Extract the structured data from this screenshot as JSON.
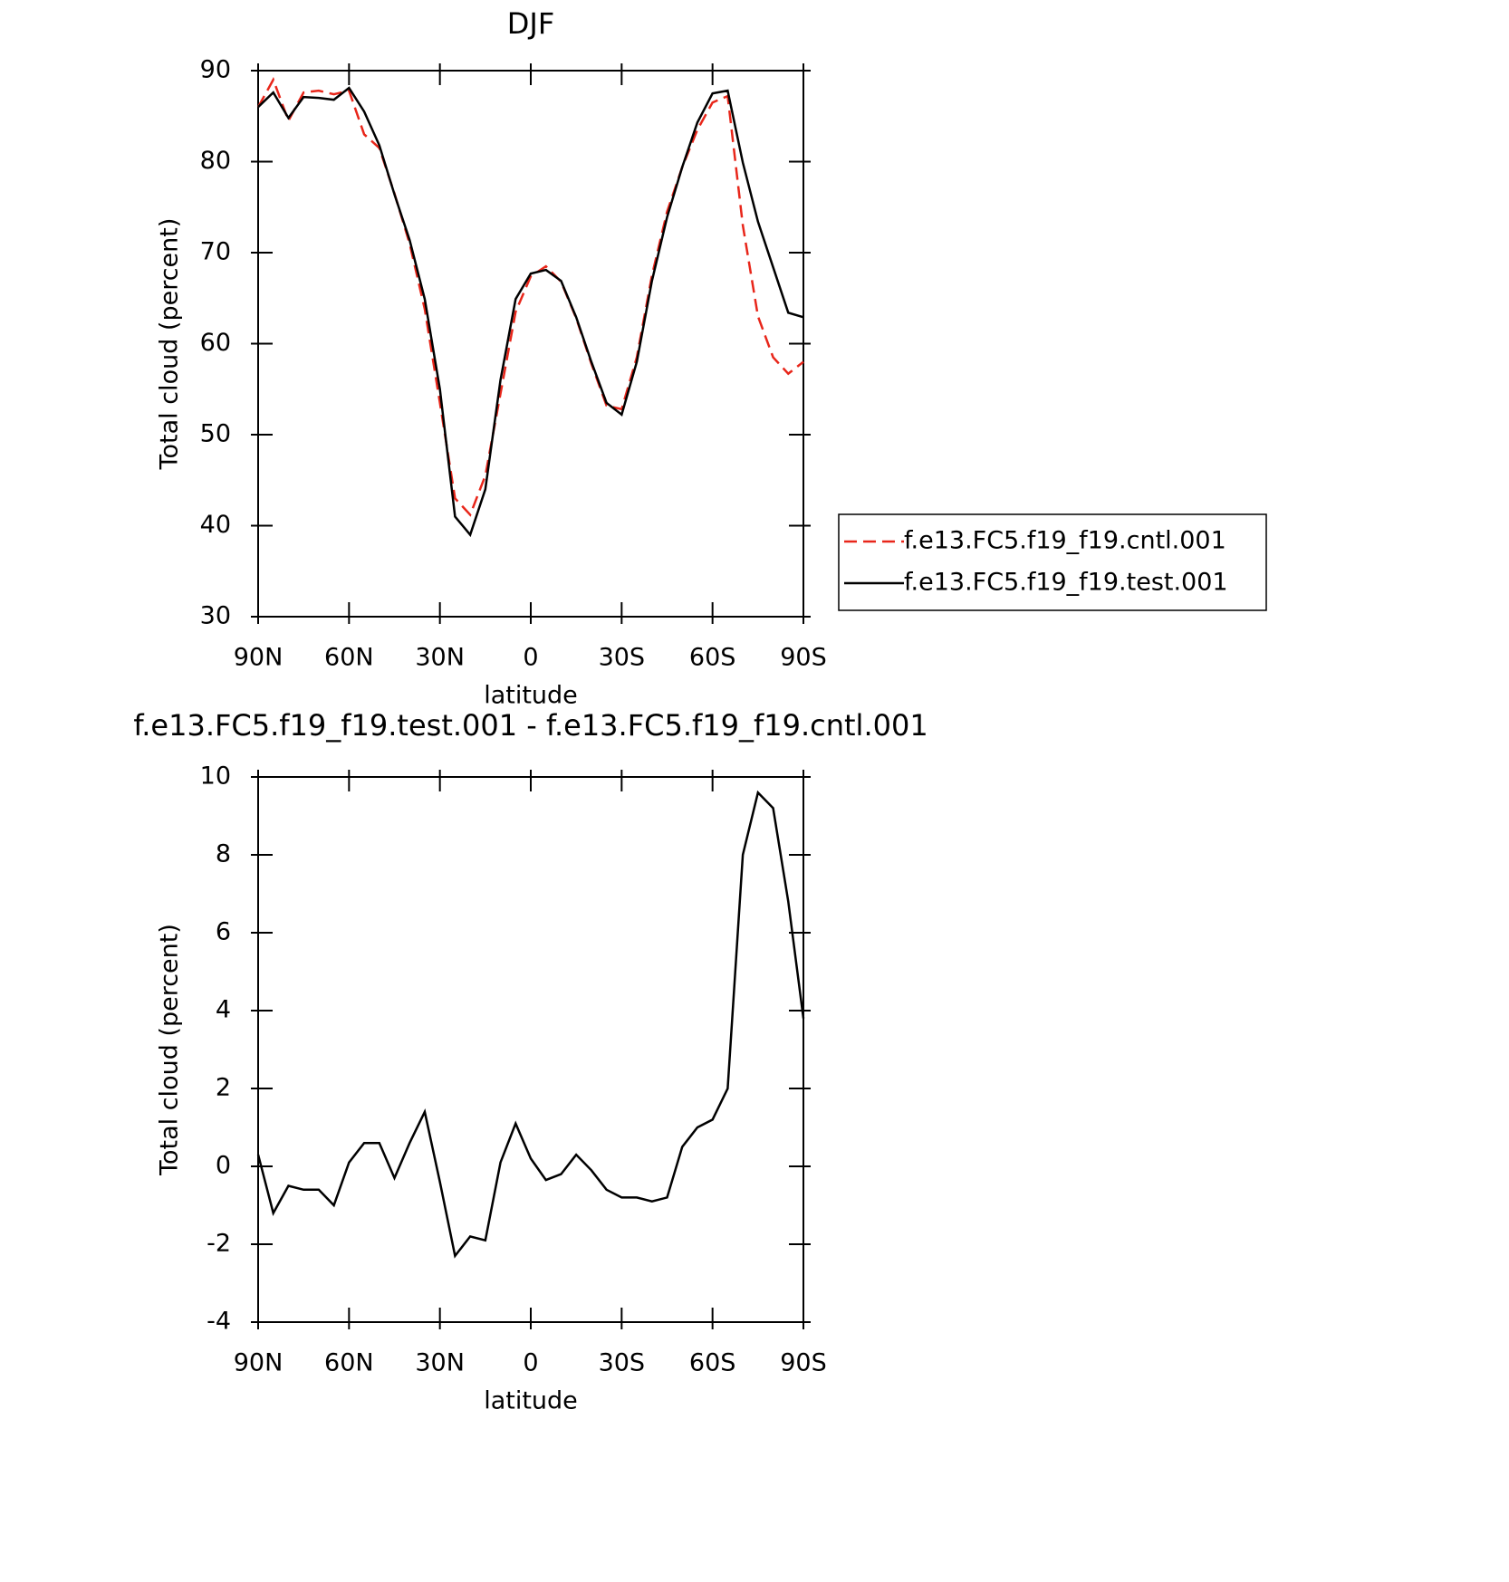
{
  "chart_data": [
    {
      "type": "line",
      "title": "DJF",
      "xlabel": "latitude",
      "ylabel": "Total cloud (percent)",
      "x": [
        90,
        85,
        80,
        75,
        70,
        65,
        60,
        55,
        50,
        45,
        40,
        35,
        30,
        25,
        20,
        15,
        10,
        5,
        0,
        -5,
        -10,
        -15,
        -20,
        -25,
        -30,
        -35,
        -40,
        -45,
        -50,
        -55,
        -60,
        -65,
        -70,
        -75,
        -80,
        -85,
        -90
      ],
      "xlim": [
        90,
        -90
      ],
      "xticks": [
        {
          "value": 90,
          "label": "90N"
        },
        {
          "value": 60,
          "label": "60N"
        },
        {
          "value": 30,
          "label": "30N"
        },
        0,
        {
          "value": -30,
          "label": "30S"
        },
        {
          "value": -60,
          "label": "60S"
        },
        {
          "value": -90,
          "label": "90S"
        }
      ],
      "ylim": [
        30,
        90
      ],
      "yticks": [
        30,
        40,
        50,
        60,
        70,
        80,
        90
      ],
      "series": [
        {
          "name": "f.e13.FC5.f19_f19.cntl.001",
          "color": "#e8261a",
          "linestyle": "dashed",
          "values": [
            86,
            89,
            84.5,
            87.6,
            87.8,
            87.4,
            87.8,
            83,
            81.5,
            76.5,
            71,
            63.8,
            53.5,
            43,
            41.2,
            45.5,
            54.5,
            63.5,
            67.4,
            68.5,
            66.8,
            62.8,
            57.8,
            53.2,
            52.8,
            58.5,
            67.5,
            74.5,
            79.4,
            83.5,
            86.5,
            87.2,
            73,
            63,
            58.5,
            56.7,
            58
          ]
        },
        {
          "name": "f.e13.FC5.f19_f19.test.001",
          "color": "#000000",
          "linestyle": "solid",
          "values": [
            86,
            87.6,
            84.8,
            87.1,
            87,
            86.8,
            88.1,
            85.5,
            81.8,
            76.4,
            71.4,
            64.9,
            55,
            41,
            39,
            44,
            56,
            64.9,
            67.7,
            68.1,
            66.9,
            62.9,
            58,
            53.5,
            52.2,
            58,
            66.9,
            73.9,
            79.4,
            84.3,
            87.5,
            87.8,
            79.9,
            73.4,
            68.4,
            63.4,
            62.9
          ]
        }
      ]
    },
    {
      "type": "line",
      "title": "f.e13.FC5.f19_f19.test.001 - f.e13.FC5.f19_f19.cntl.001",
      "xlabel": "latitude",
      "ylabel": "Total cloud (percent)",
      "x": [
        90,
        85,
        80,
        75,
        70,
        65,
        60,
        55,
        50,
        45,
        40,
        35,
        30,
        25,
        20,
        15,
        10,
        5,
        0,
        -5,
        -10,
        -15,
        -20,
        -25,
        -30,
        -35,
        -40,
        -45,
        -50,
        -55,
        -60,
        -65,
        -70,
        -75,
        -80,
        -85,
        -90
      ],
      "xlim": [
        90,
        -90
      ],
      "xticks": [
        {
          "value": 90,
          "label": "90N"
        },
        {
          "value": 60,
          "label": "60N"
        },
        {
          "value": 30,
          "label": "30N"
        },
        0,
        {
          "value": -30,
          "label": "30S"
        },
        {
          "value": -60,
          "label": "60S"
        },
        {
          "value": -90,
          "label": "90S"
        }
      ],
      "ylim": [
        -4,
        10
      ],
      "yticks": [
        -4,
        -2,
        0,
        2,
        4,
        6,
        8,
        10
      ],
      "series": [
        {
          "color": "#000000",
          "linestyle": "solid",
          "values": [
            0.3,
            -1.2,
            -0.5,
            -0.6,
            -0.6,
            -1.0,
            0.1,
            0.6,
            0.6,
            -0.3,
            0.6,
            1.4,
            -0.4,
            -2.3,
            -1.8,
            -1.9,
            0.1,
            1.1,
            0.2,
            -0.35,
            -0.2,
            0.3,
            -0.1,
            -0.6,
            -0.8,
            -0.8,
            -0.9,
            -0.8,
            0.5,
            1.0,
            1.2,
            2.0,
            8.0,
            9.6,
            9.2,
            6.8,
            3.8
          ]
        }
      ]
    }
  ]
}
